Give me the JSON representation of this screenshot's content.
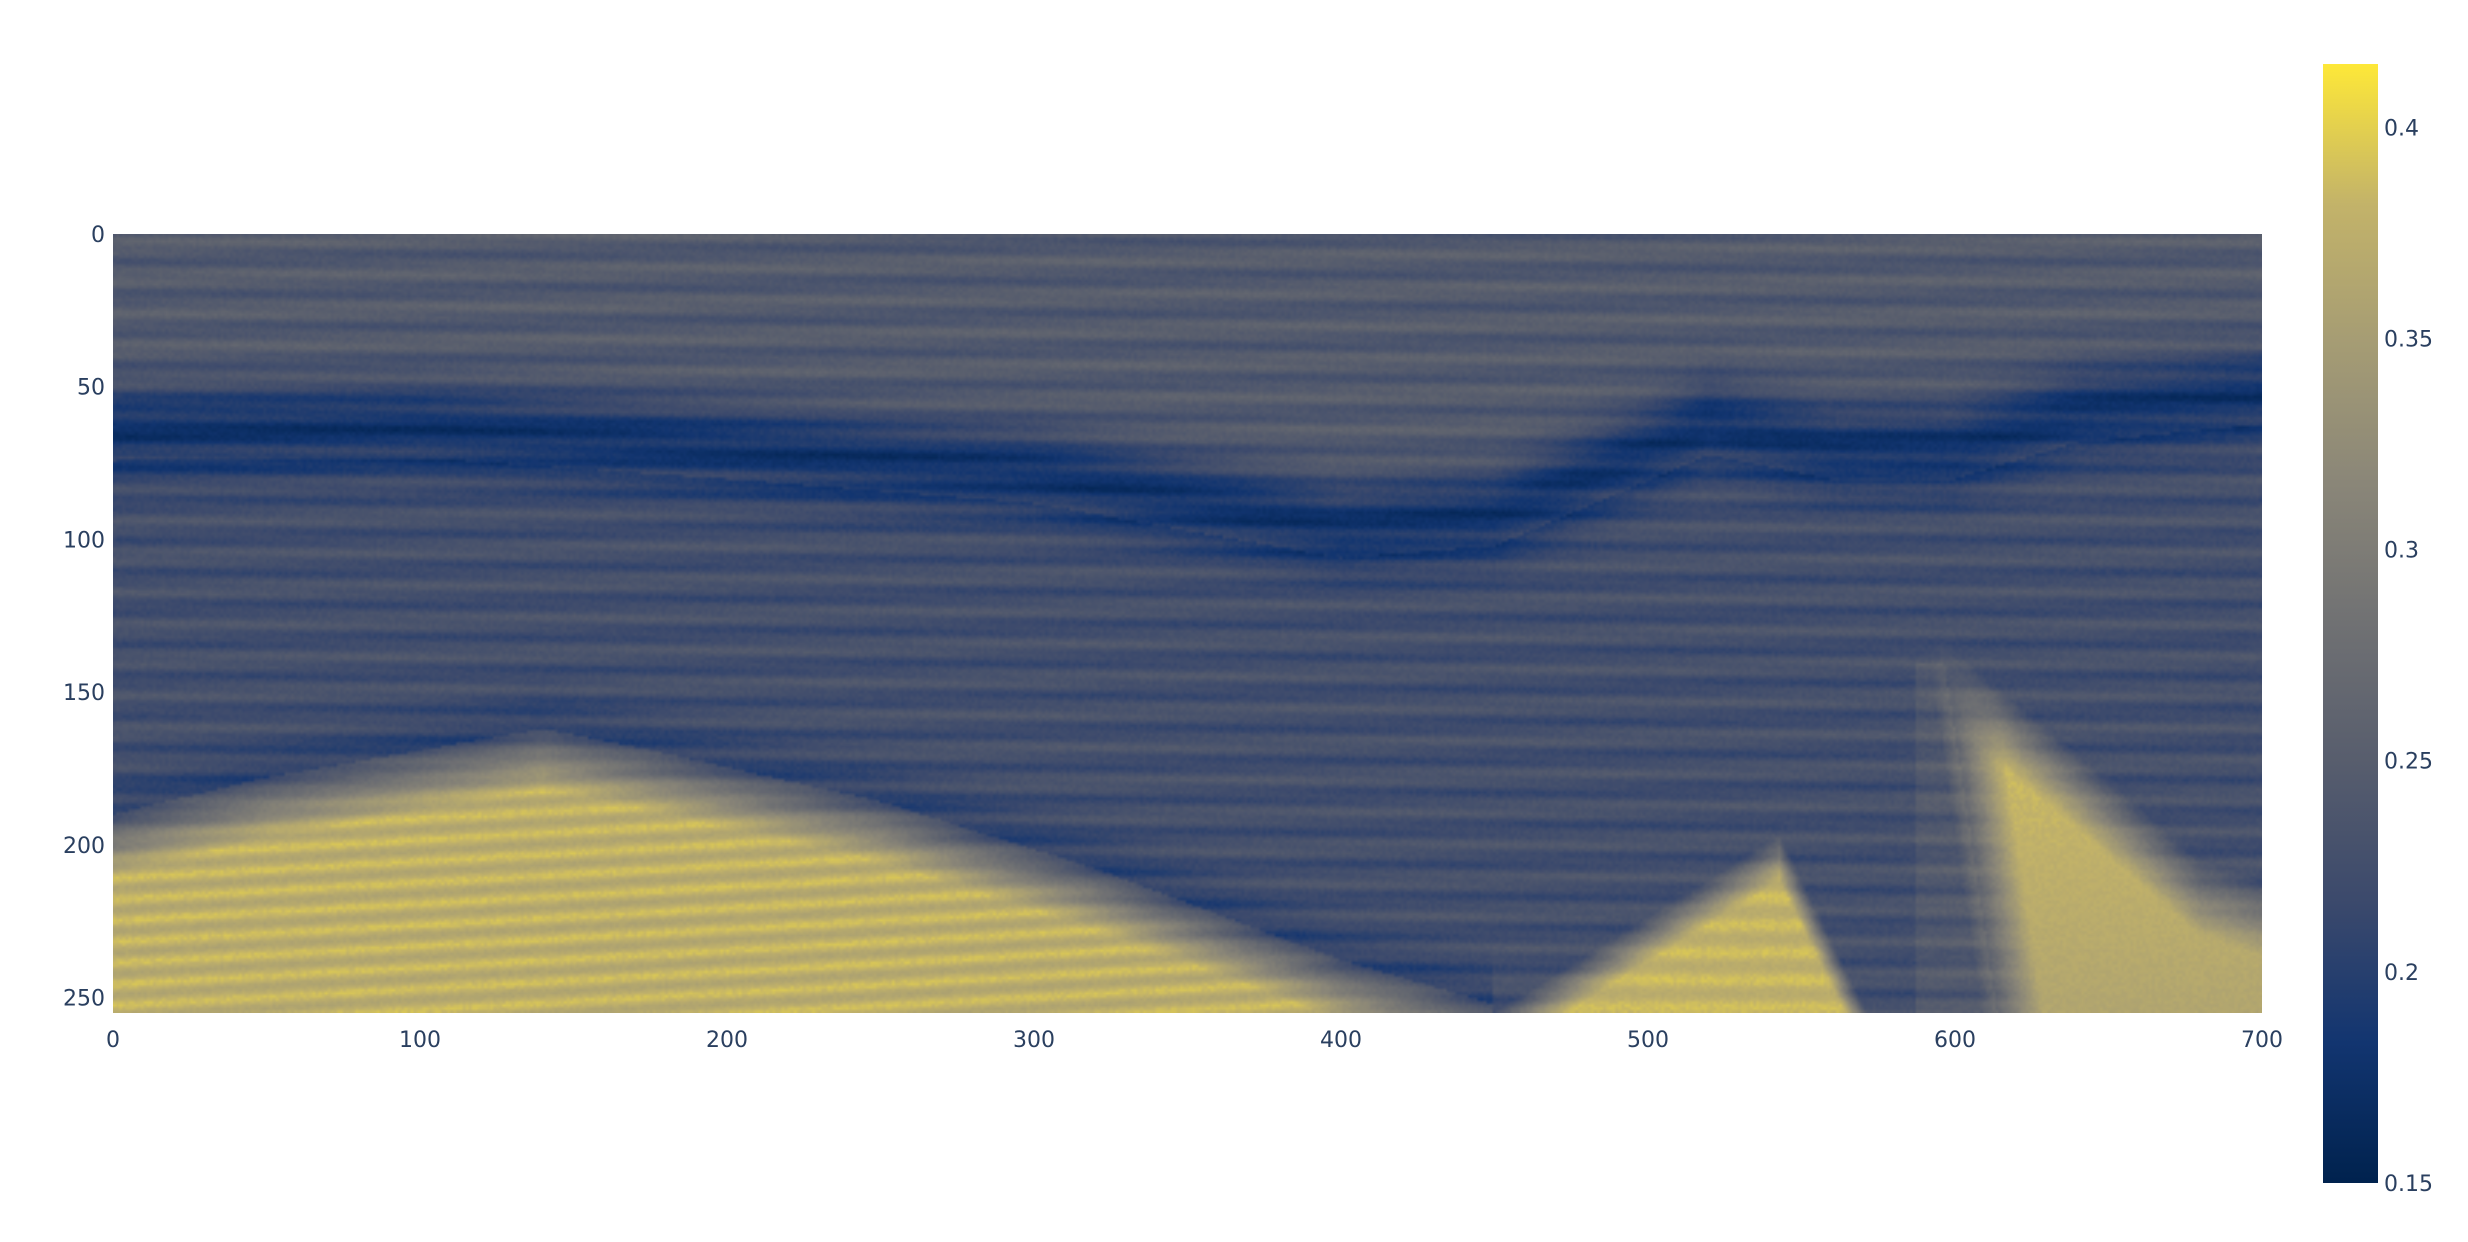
{
  "chart_data": {
    "type": "heatmap",
    "title": "",
    "xlabel": "",
    "ylabel": "",
    "xlim": [
      0,
      700
    ],
    "ylim": [
      255,
      0
    ],
    "y_axis_reversed": true,
    "x_ticks": [
      "0",
      "100",
      "200",
      "300",
      "400",
      "500",
      "600",
      "700"
    ],
    "y_ticks": [
      "0",
      "50",
      "100",
      "150",
      "200",
      "250"
    ],
    "colorbar": {
      "colorscale": "cividis",
      "range": [
        0.15,
        0.415
      ],
      "ticks": [
        "0.15",
        "0.2",
        "0.25",
        "0.3",
        "0.35",
        "0.4"
      ]
    },
    "field": {
      "description_values": "background ~0.24-0.26, dark band ~0.18 near depth 50-100, bright region ~0.36-0.40 at bottom",
      "background": 0.245,
      "dark_band": {
        "points": [
          [
            0,
            64
          ],
          [
            100,
            63
          ],
          [
            200,
            70
          ],
          [
            300,
            78
          ],
          [
            400,
            96
          ],
          [
            450,
            92
          ],
          [
            520,
            62
          ],
          [
            560,
            70
          ],
          [
            600,
            70
          ],
          [
            640,
            58
          ],
          [
            700,
            52
          ]
        ],
        "thickness": 14,
        "value": 0.18
      },
      "bright_interfaces": [
        {
          "points": [
            [
              0,
              190
            ],
            [
              50,
              178
            ],
            [
              140,
              162
            ],
            [
              170,
              168
            ],
            [
              250,
              186
            ],
            [
              320,
              208
            ],
            [
              400,
              238
            ],
            [
              448,
              252
            ]
          ],
          "value": 0.375,
          "side": "below"
        },
        {
          "points": [
            [
              450,
              255
            ],
            [
              500,
              228
            ],
            [
              543,
              197
            ],
            [
              570,
              252
            ]
          ],
          "value": 0.38,
          "side": "inside-peak"
        },
        {
          "points": [
            [
              590,
              128
            ],
            [
              640,
              170
            ],
            [
              680,
              205
            ],
            [
              700,
              212
            ]
          ],
          "value": 0.385,
          "side": "right-of-line"
        }
      ],
      "deep_background_below_band": 0.225
    }
  }
}
